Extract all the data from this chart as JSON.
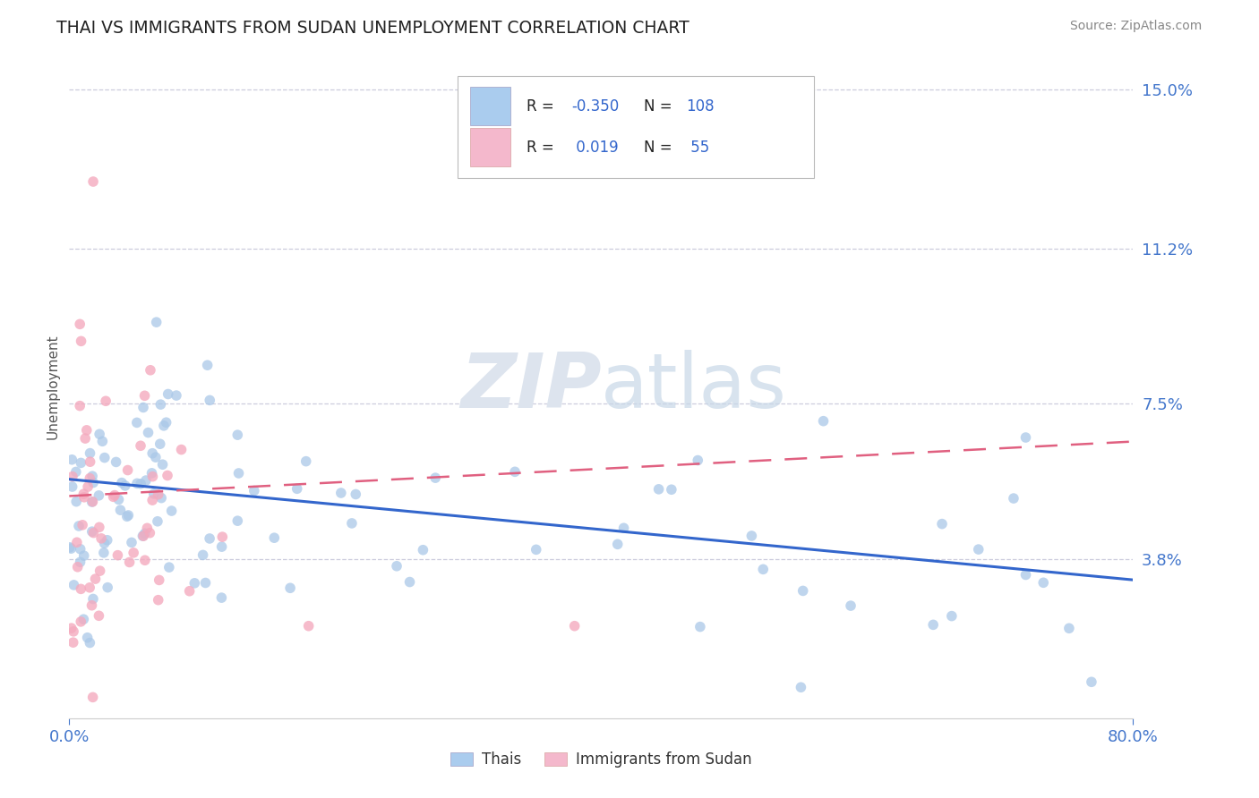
{
  "title": "THAI VS IMMIGRANTS FROM SUDAN UNEMPLOYMENT CORRELATION CHART",
  "source": "Source: ZipAtlas.com",
  "ylabel": "Unemployment",
  "xmin": 0.0,
  "xmax": 0.8,
  "ymin": 0.0,
  "ymax": 0.158,
  "yticks": [
    0.038,
    0.075,
    0.112,
    0.15
  ],
  "ytick_labels": [
    "3.8%",
    "7.5%",
    "11.2%",
    "15.0%"
  ],
  "xticks": [
    0.0,
    0.8
  ],
  "xtick_labels": [
    "0.0%",
    "80.0%"
  ],
  "group1_label": "Thais",
  "group2_label": "Immigrants from Sudan",
  "group1_color": "#aac8e8",
  "group2_color": "#f4aabe",
  "group1_line_color": "#3366cc",
  "group2_line_color": "#e06080",
  "group1_legend_color": "#aaccee",
  "group2_legend_color": "#f4b8cc",
  "watermark_zip": "ZIP",
  "watermark_atlas": "atlas",
  "background_color": "#ffffff",
  "grid_color": "#ccccdd",
  "R1": -0.35,
  "N1": 108,
  "R2": 0.019,
  "N2": 55,
  "title_color": "#222222",
  "value_color": "#3366cc",
  "label_color": "#222222",
  "tick_color": "#4477cc",
  "line1_y0": 0.057,
  "line1_y1": 0.033,
  "line2_y0": 0.053,
  "line2_y1": 0.066
}
